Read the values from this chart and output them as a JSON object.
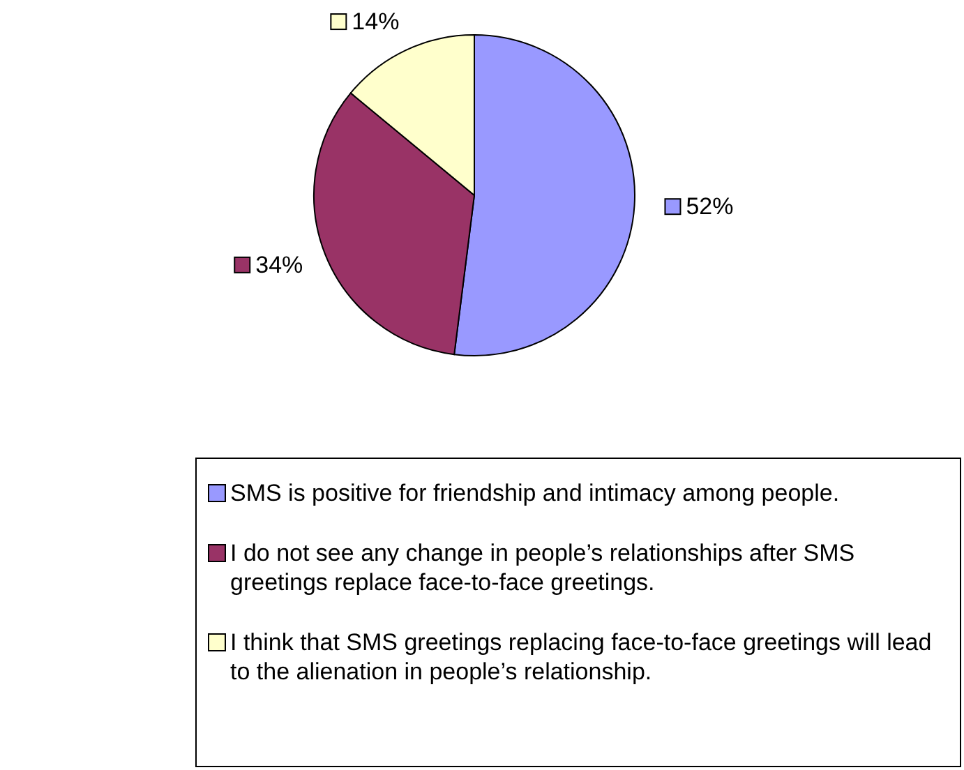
{
  "chart_data": {
    "type": "pie",
    "categories": [
      "SMS is positive for friendship and intimacy among people.",
      "I do not see any change in people’s relationships after SMS greetings replace face-to-face greetings.",
      "I think that SMS greetings replacing face-to-face greetings will lead to the alienation in people’s relationship."
    ],
    "values": [
      52,
      34,
      14
    ],
    "colors": [
      "#9999ff",
      "#993366",
      "#ffffcc"
    ],
    "value_labels": [
      "52%",
      "34%",
      "14%"
    ],
    "legend": "bottom"
  }
}
